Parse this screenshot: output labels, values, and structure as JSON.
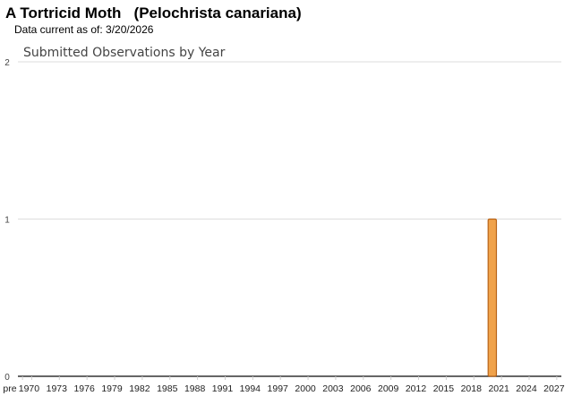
{
  "header": {
    "title": "A Tortricid Moth   (Pelochrista canariana)",
    "data_current": "Data current as of: 3/20/2026"
  },
  "chart_data": {
    "type": "bar",
    "title": "Submitted Observations by Year",
    "xlabel": "",
    "ylabel": "",
    "ylim": [
      0,
      2
    ],
    "yticks": [
      0,
      1,
      2
    ],
    "grid": true,
    "bar_color": "#f0a24a",
    "bar_border": "#b8641a",
    "categories": [
      "pre",
      "1970",
      "1971",
      "1972",
      "1973",
      "1974",
      "1975",
      "1976",
      "1977",
      "1978",
      "1979",
      "1980",
      "1981",
      "1982",
      "1983",
      "1984",
      "1985",
      "1986",
      "1987",
      "1988",
      "1989",
      "1990",
      "1991",
      "1992",
      "1993",
      "1994",
      "1995",
      "1996",
      "1997",
      "1998",
      "1999",
      "2000",
      "2001",
      "2002",
      "2003",
      "2004",
      "2005",
      "2006",
      "2007",
      "2008",
      "2009",
      "2010",
      "2011",
      "2012",
      "2013",
      "2014",
      "2015",
      "2016",
      "2017",
      "2018",
      "2019",
      "2020",
      "2021",
      "2022",
      "2023",
      "2024",
      "2025",
      "2026",
      "2027"
    ],
    "x_tick_labels": [
      "pre",
      "1970",
      "1973",
      "1976",
      "1979",
      "1982",
      "1985",
      "1988",
      "1991",
      "1994",
      "1997",
      "2000",
      "2003",
      "2006",
      "2009",
      "2012",
      "2015",
      "2018",
      "2021",
      "2024",
      "2027"
    ],
    "values": {
      "2020": 1
    }
  }
}
